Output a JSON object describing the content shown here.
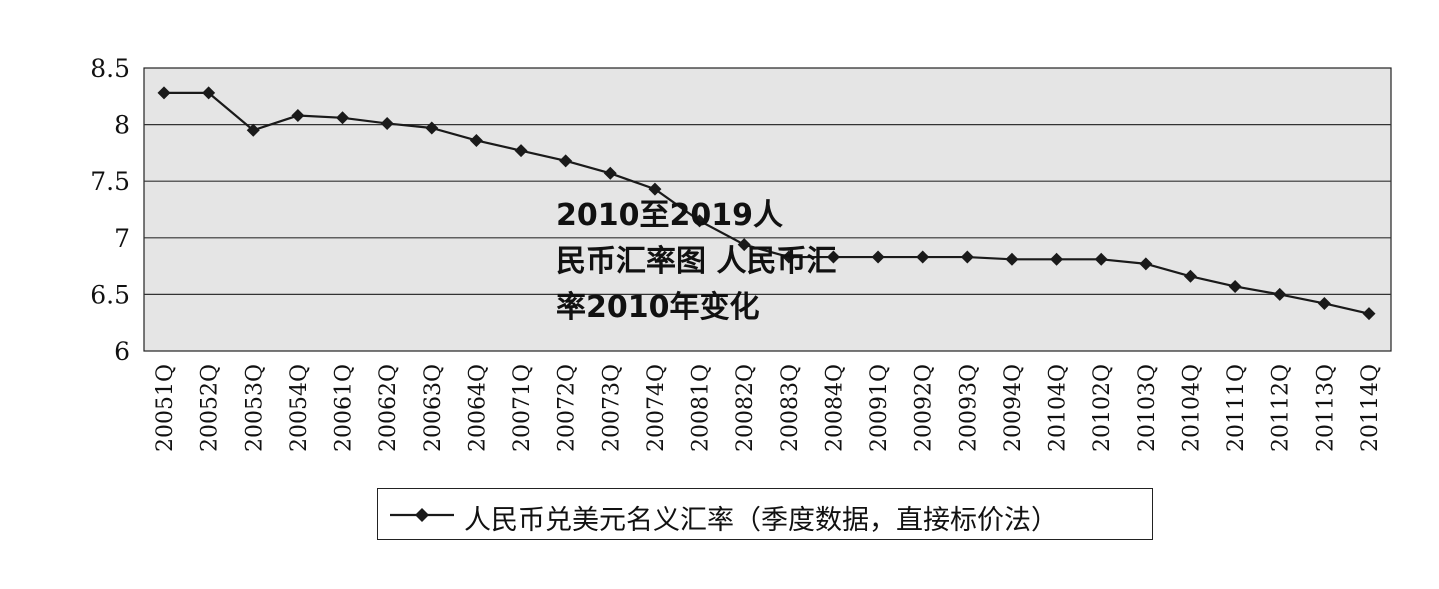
{
  "chart_data": {
    "type": "line",
    "title": "",
    "xlabel": "",
    "ylabel": "",
    "ylim": [
      6,
      8.5
    ],
    "yticks": [
      "8.5",
      "8",
      "7.5",
      "7",
      "6.5",
      "6"
    ],
    "grid": true,
    "legend_position": "bottom",
    "categories": [
      "20051Q",
      "20052Q",
      "20053Q",
      "20054Q",
      "20061Q",
      "20062Q",
      "20063Q",
      "20064Q",
      "20071Q",
      "20072Q",
      "20073Q",
      "20074Q",
      "20081Q",
      "20082Q",
      "20083Q",
      "20084Q",
      "20091Q",
      "20092Q",
      "20093Q",
      "20094Q",
      "20104Q",
      "20102Q",
      "20103Q",
      "20104Q",
      "20111Q",
      "20112Q",
      "20113Q",
      "20114Q"
    ],
    "series": [
      {
        "name": "人民币兑美元名义汇率（季度数据，直接标价法）",
        "values": [
          8.28,
          8.28,
          7.95,
          8.08,
          8.06,
          8.01,
          7.97,
          7.86,
          7.77,
          7.68,
          7.57,
          7.43,
          7.15,
          6.94,
          6.83,
          6.83,
          6.83,
          6.83,
          6.83,
          6.81,
          6.81,
          6.81,
          6.77,
          6.66,
          6.57,
          6.5,
          6.42,
          6.33
        ]
      }
    ]
  },
  "overlay_text": {
    "line1": "2010至2019人",
    "line2": "民币汇率图 人民币汇",
    "line3": "率2010年变化"
  },
  "colors": {
    "plot_background": "#e5e5e5",
    "line": "#1a1a1a",
    "gridline": "#333333"
  }
}
